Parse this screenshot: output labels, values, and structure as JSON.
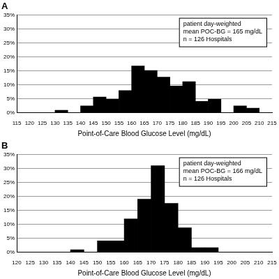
{
  "chart_data": [
    {
      "type": "histogram",
      "title": "A",
      "x_label": "Point-of-Care Blood Glucose Level (mg/dL)",
      "annotations": [
        "patient day-weighted",
        "mean POC-BG = 165 mg/dL",
        "n = 126 Hospitals"
      ],
      "bins": [
        130,
        135,
        140,
        145,
        150,
        155,
        160,
        165,
        170,
        175,
        180,
        185,
        190,
        195,
        200,
        205,
        210
      ],
      "values": [
        0.8,
        0,
        2.4,
        5.6,
        4.8,
        7.9,
        16.7,
        15.1,
        12.7,
        9.5,
        11.1,
        4.0,
        4.8,
        0,
        2.4,
        1.6
      ],
      "color": "#000000",
      "xlim": [
        115,
        215
      ],
      "xticks": [
        115,
        120,
        125,
        130,
        135,
        140,
        145,
        150,
        155,
        160,
        165,
        170,
        175,
        180,
        185,
        190,
        195,
        200,
        205,
        210,
        215
      ],
      "ylim": [
        0,
        35
      ],
      "yticks": [
        {
          "value": 0,
          "label": "0%"
        },
        {
          "value": 5,
          "label": "5%"
        },
        {
          "value": 10,
          "label": "10%"
        },
        {
          "value": 15,
          "label": "15%"
        },
        {
          "value": 20,
          "label": "20%"
        },
        {
          "value": 25,
          "label": "25%"
        },
        {
          "value": 30,
          "label": "30%"
        },
        {
          "value": 35,
          "label": "35%"
        }
      ],
      "grid": true
    },
    {
      "type": "histogram",
      "title": "B",
      "x_label": "Point-of-Care Blood Glucose Level (mg/dL)",
      "annotations": [
        "patient day-weighted",
        "mean POC-BG = 166 mg/dL",
        "n = 126 Hospitals"
      ],
      "bins": [
        140,
        145,
        150,
        155,
        160,
        165,
        170,
        175,
        180,
        185,
        190,
        195
      ],
      "values": [
        0.8,
        0,
        4.0,
        4.0,
        11.9,
        19.0,
        31.0,
        17.5,
        8.7,
        1.6,
        1.6
      ],
      "color": "#000000",
      "xlim": [
        120,
        215
      ],
      "xticks": [
        120,
        125,
        130,
        135,
        140,
        145,
        150,
        155,
        160,
        165,
        170,
        175,
        180,
        185,
        190,
        195,
        200,
        205,
        210,
        215
      ],
      "ylim": [
        0,
        35
      ],
      "yticks": [
        {
          "value": 0,
          "label": "0%"
        },
        {
          "value": 5,
          "label": "5%"
        },
        {
          "value": 10,
          "label": "10%"
        },
        {
          "value": 15,
          "label": "15%"
        },
        {
          "value": 20,
          "label": "20%"
        },
        {
          "value": 25,
          "label": "25%"
        },
        {
          "value": 30,
          "label": "30%"
        },
        {
          "value": 35,
          "label": "35%"
        }
      ],
      "grid": true
    }
  ]
}
